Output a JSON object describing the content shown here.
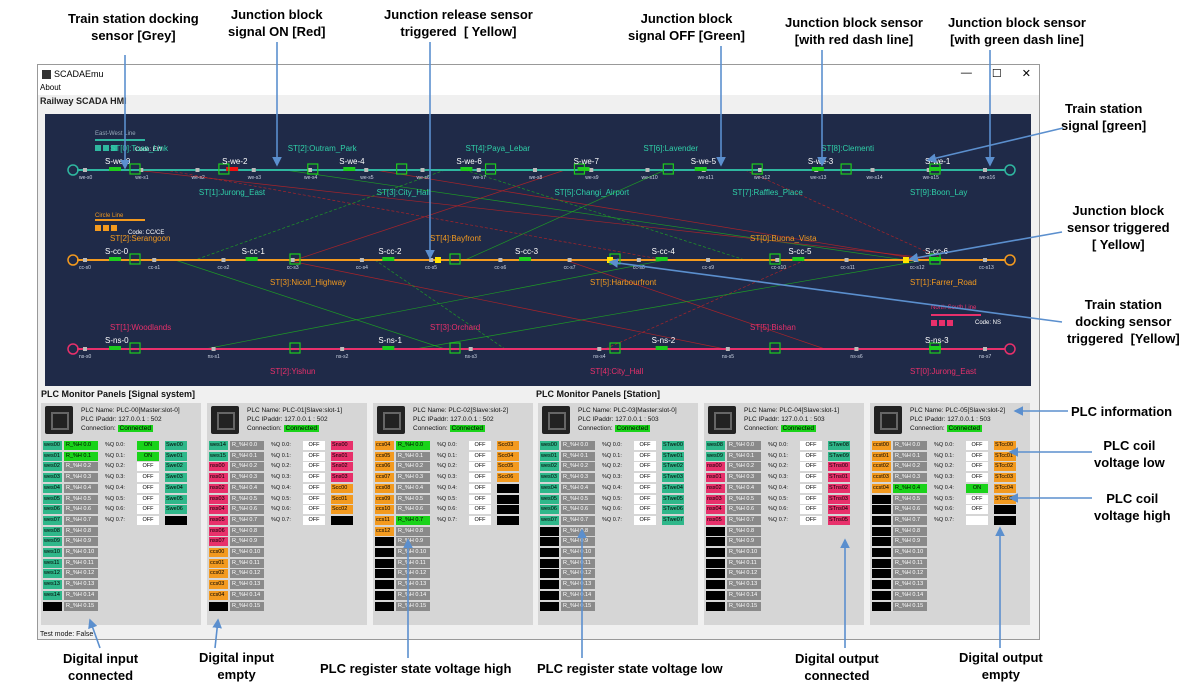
{
  "callouts": {
    "train_docking_grey": "Train station docking\nsensor [Grey]",
    "junction_on_red": "Junction block\nsignal ON [Red]",
    "junction_release_yellow": "Junction release sensor\ntriggered  [ Yellow]",
    "junction_off_green": "Junction block\nsignal OFF [Green]",
    "junction_red_dash": "Junction block sensor\n[with red dash line]",
    "junction_green_dash": "Junction block sensor\n[with green dash line]",
    "station_signal_green": "Train station\nsignal [green]",
    "junction_triggered_yellow": "Junction block\nsensor triggered\n[ Yellow]",
    "station_docking_triggered": "Train station\ndocking sensor\ntriggered  [Yellow]",
    "plc_information": "PLC information",
    "coil_low": "PLC coil\nvoltage low",
    "coil_high": "PLC coil\nvoltage high",
    "di_connected": "Digital input\nconnected",
    "di_empty": "Digital input\nempty",
    "reg_high": "PLC register state voltage high",
    "reg_low": "PLC register state voltage low",
    "do_connected": "Digital output\nconnected",
    "do_empty": "Digital output\nempty"
  },
  "window": {
    "title": "SCADAEmu",
    "menu": "About",
    "hmi_title": "Railway SCADA HMI",
    "status": "Test mode: False",
    "minimize": "—",
    "maximize": "☐",
    "close": "✕"
  },
  "map": {
    "ew_legend": "East-West Line",
    "ew_code": "Code: EW",
    "cc_legend": "Circle Line",
    "cc_code": "Code: CC/CE",
    "ns_legend": "North-South Line",
    "ns_code": "Code: NS",
    "ew_stations": [
      "ST[0]:Tuas_Link",
      "ST[1]:Jurong_East",
      "ST[2]:Outram_Park",
      "ST[3]:City_Hall",
      "ST[4]:Paya_Lebar",
      "ST[5]:Changi_Airport",
      "ST[6]:Lavender",
      "ST[7]:Raffles_Place",
      "ST[8]:Clementi",
      "ST[9]:Boon_Lay"
    ],
    "cc_stations": [
      "ST[2]:Serangoon",
      "ST[3]:Nicoll_Highway",
      "ST[4]:Bayfront",
      "ST[5]:Harbourfront",
      "ST[0]:Buona_Vista",
      "ST[1]:Farrer_Road"
    ],
    "ns_stations": [
      "ST[1]:Woodlands",
      "ST[2]:Yishun",
      "ST[3]:Orchard",
      "ST[4]:City_Hall",
      "ST[5]:Bishan",
      "ST[0]:Jurong_East"
    ],
    "ew_signals": [
      "S-we-0",
      "S-we-2",
      "S-we-4",
      "S-we-6",
      "S-we-7",
      "S-we-5",
      "S-we-3",
      "S-we-1"
    ],
    "cc_signals": [
      "S-cc-0",
      "S-cc-1",
      "S-cc-2",
      "S-cc-3",
      "S-cc-4",
      "S-cc-5",
      "S-cc-6"
    ],
    "ns_signals": [
      "S-ns-0",
      "S-ns-1",
      "S-ns-2",
      "S-ns-3"
    ],
    "ew_sensors": [
      "we-s0",
      "we-s1",
      "we-s2",
      "we-s3",
      "we-s4",
      "we-s5",
      "we-s6",
      "we-s7",
      "we-s8",
      "we-s9",
      "we-s10",
      "we-s11",
      "we-s12",
      "we-s13",
      "we-s14",
      "we-s15",
      "we-s16"
    ],
    "cc_sensors": [
      "cc-s0",
      "cc-s1",
      "cc-s2",
      "cc-s3",
      "cc-s4",
      "cc-s5",
      "cc-s6",
      "cc-s7",
      "cc-s8",
      "cc-s9",
      "cc-s10",
      "cc-s11",
      "cc-s12",
      "cc-s13"
    ],
    "ns_sensors": [
      "ns-s0",
      "ns-s1",
      "ns-s2",
      "ns-s3",
      "ns-s4",
      "ns-s5",
      "ns-s6",
      "ns-s7"
    ]
  },
  "plc": {
    "signal_section": "PLC Monitor Panels [Signal system]",
    "station_section": "PLC Monitor Panels [Station]",
    "name_label": "PLC Name:",
    "ip_label": "PLC IPaddr:",
    "conn_label": "Connection:",
    "panels": [
      {
        "name": "PLC-00[Master:slot-0]",
        "ip": "127.0.0.1 : 502",
        "conn": "Connected",
        "di": [
          "wes00",
          "wes01",
          "wes02",
          "wes03",
          "wes04",
          "wes05",
          "wes06",
          "wes07",
          "wes08",
          "wes09",
          "wes10",
          "wes11",
          "wes12",
          "wes13",
          "wes14",
          ""
        ],
        "rs": [
          "R_%H 0.0",
          "R_%H 0.1",
          "R_%H 0.2",
          "R_%H 0.3",
          "R_%H 0.4",
          "R_%H 0.5",
          "R_%H 0.6",
          "R_%H 0.7",
          "R_%H 0.8",
          "R_%H 0.9",
          "R_%H 0.10",
          "R_%H 0.11",
          "R_%H 0.12",
          "R_%H 0.13",
          "R_%H 0.14",
          "R_%H 0.15"
        ],
        "q": [
          "ON",
          "ON",
          "OFF",
          "OFF",
          "OFF",
          "OFF",
          "OFF",
          "OFF"
        ],
        "do": [
          "Swe00",
          "Swe01",
          "Swe02",
          "Swe03",
          "Swe04",
          "Swe05",
          "Swe06",
          ""
        ]
      },
      {
        "name": "PLC-01[Slave:slot-1]",
        "ip": "127.0.0.1 : 502",
        "conn": "Connected",
        "di": [
          "wes14",
          "wes15",
          "nss00",
          "nss01",
          "nss02",
          "nss03",
          "nss04",
          "nss05",
          "nss06",
          "nss07",
          "ccs00",
          "ccs01",
          "ccs02",
          "ccs03",
          "ccs04",
          ""
        ],
        "rs": [
          "R_%H 0.0",
          "R_%H 0.1",
          "R_%H 0.2",
          "R_%H 0.3",
          "R_%H 0.4",
          "R_%H 0.5",
          "R_%H 0.6",
          "R_%H 0.7",
          "R_%H 0.8",
          "R_%H 0.9",
          "R_%H 0.10",
          "R_%H 0.11",
          "R_%H 0.12",
          "R_%H 0.13",
          "R_%H 0.14",
          "R_%H 0.15"
        ],
        "q": [
          "OFF",
          "OFF",
          "OFF",
          "OFF",
          "OFF",
          "OFF",
          "OFF",
          "OFF"
        ],
        "do": [
          "Sns00",
          "Sns01",
          "Sns02",
          "Sns03",
          "Scc00",
          "Scc01",
          "Scc02",
          ""
        ]
      },
      {
        "name": "PLC-02[Slave:slot-2]",
        "ip": "127.0.0.1 : 502",
        "conn": "Connected",
        "di": [
          "ccs04",
          "ccs05",
          "ccs06",
          "ccs07",
          "ccs08",
          "ccs09",
          "ccs10",
          "ccs11",
          "ccs12",
          "",
          "",
          "",
          "",
          "",
          "",
          ""
        ],
        "rs": [
          "R_%H 0.0",
          "R_%H 0.1",
          "R_%H 0.2",
          "R_%H 0.3",
          "R_%H 0.4",
          "R_%H 0.5",
          "R_%H 0.6",
          "R_%H 0.7",
          "R_%H 0.8",
          "R_%H 0.9",
          "R_%H 0.10",
          "R_%H 0.11",
          "R_%H 0.12",
          "R_%H 0.13",
          "R_%H 0.14",
          "R_%H 0.15"
        ],
        "q": [
          "OFF",
          "OFF",
          "OFF",
          "OFF",
          "OFF",
          "OFF",
          "OFF",
          "OFF"
        ],
        "do": [
          "Scc03",
          "Scc04",
          "Scc05",
          "Scc06",
          "",
          "",
          "",
          ""
        ]
      },
      {
        "name": "PLC-03[Master:slot-0]",
        "ip": "127.0.0.1 : 503",
        "conn": "Connected",
        "di": [
          "wes00",
          "wes01",
          "wes02",
          "wes03",
          "wes04",
          "wes05",
          "wes06",
          "wes07",
          "",
          "",
          "",
          "",
          "",
          "",
          "",
          ""
        ],
        "rs": [
          "R_%H 0.0",
          "R_%H 0.1",
          "R_%H 0.2",
          "R_%H 0.3",
          "R_%H 0.4",
          "R_%H 0.5",
          "R_%H 0.6",
          "R_%H 0.7",
          "R_%H 0.8",
          "R_%H 0.9",
          "R_%H 0.10",
          "R_%H 0.11",
          "R_%H 0.12",
          "R_%H 0.13",
          "R_%H 0.14",
          "R_%H 0.15"
        ],
        "q": [
          "OFF",
          "OFF",
          "OFF",
          "OFF",
          "OFF",
          "OFF",
          "OFF",
          "OFF"
        ],
        "do": [
          "STwe00",
          "STwe01",
          "STwe02",
          "STwe03",
          "STwe04",
          "STwe05",
          "STwe06",
          "STwe07"
        ]
      },
      {
        "name": "PLC-04[Slave:slot-1]",
        "ip": "127.0.0.1 : 503",
        "conn": "Connected",
        "di": [
          "wes08",
          "wes09",
          "nss00",
          "nss01",
          "nss02",
          "nss03",
          "nss04",
          "nss05",
          "",
          "",
          "",
          "",
          "",
          "",
          "",
          ""
        ],
        "rs": [
          "R_%H 0.0",
          "R_%H 0.1",
          "R_%H 0.2",
          "R_%H 0.3",
          "R_%H 0.4",
          "R_%H 0.5",
          "R_%H 0.6",
          "R_%H 0.7",
          "R_%H 0.8",
          "R_%H 0.9",
          "R_%H 0.10",
          "R_%H 0.11",
          "R_%H 0.12",
          "R_%H 0.13",
          "R_%H 0.14",
          "R_%H 0.15"
        ],
        "q": [
          "OFF",
          "OFF",
          "OFF",
          "OFF",
          "OFF",
          "OFF",
          "OFF",
          "OFF"
        ],
        "do": [
          "STwe08",
          "STwe09",
          "STns00",
          "STns01",
          "STns02",
          "STns03",
          "STns04",
          "STns05"
        ]
      },
      {
        "name": "PLC-05[Slave:slot-2]",
        "ip": "127.0.0.1 : 503",
        "conn": "Connected",
        "di": [
          "ccst00",
          "ccst01",
          "ccst02",
          "ccst03",
          "ccst04",
          "",
          "",
          "",
          "",
          "",
          "",
          "",
          "",
          "",
          "",
          ""
        ],
        "rs": [
          "R_%H 0.0",
          "R_%H 0.1",
          "R_%H 0.2",
          "R_%H 0.3",
          "R_%H 0.4",
          "R_%H 0.5",
          "R_%H 0.6",
          "R_%H 0.7",
          "R_%H 0.8",
          "R_%H 0.9",
          "R_%H 0.10",
          "R_%H 0.11",
          "R_%H 0.12",
          "R_%H 0.13",
          "R_%H 0.14",
          "R_%H 0.15"
        ],
        "q": [
          "OFF",
          "OFF",
          "OFF",
          "OFF",
          "ON",
          "OFF",
          "OFF",
          ""
        ],
        "do": [
          "STcc00",
          "STcc01",
          "STcc02",
          "STcc03",
          "STcc04",
          "STcc05",
          "",
          ""
        ]
      }
    ]
  }
}
